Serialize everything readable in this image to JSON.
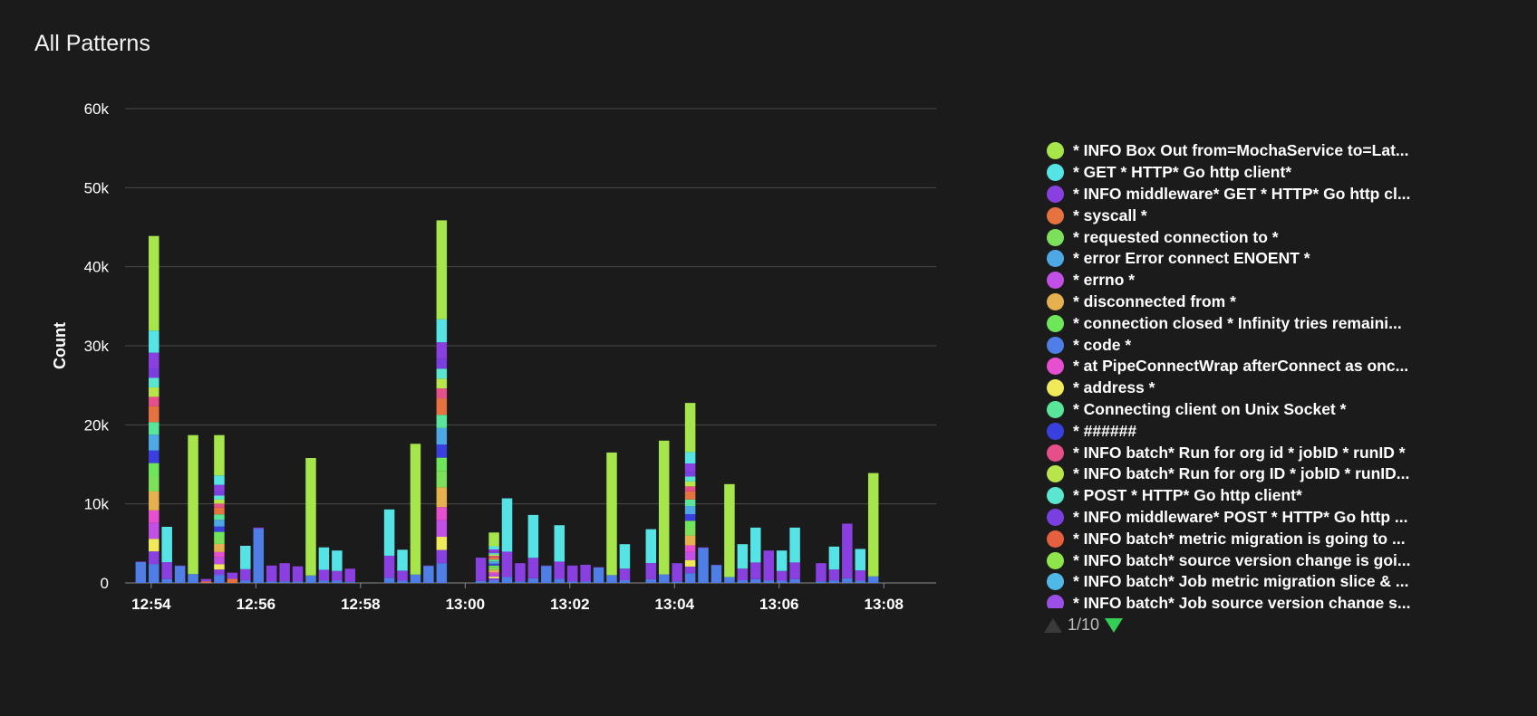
{
  "panel": {
    "title": "All Patterns"
  },
  "pager": {
    "text": "1/10",
    "prev_icon": "triangle-up-icon",
    "next_icon": "triangle-down-icon"
  },
  "chart_data": {
    "type": "bar",
    "stacked": true,
    "ylabel": "Count",
    "ylim": [
      0,
      60000
    ],
    "yticks": [
      {
        "value": 0,
        "label": "0"
      },
      {
        "value": 10000,
        "label": "10k"
      },
      {
        "value": 20000,
        "label": "20k"
      },
      {
        "value": 30000,
        "label": "30k"
      },
      {
        "value": 40000,
        "label": "40k"
      },
      {
        "value": 50000,
        "label": "50k"
      },
      {
        "value": 60000,
        "label": "60k"
      }
    ],
    "xlim": [
      "12:53:30",
      "13:09:00"
    ],
    "xticks": [
      "12:54",
      "12:56",
      "12:58",
      "13:00",
      "13:02",
      "13:04",
      "13:06",
      "13:08"
    ],
    "grid": true,
    "legend_position": "right",
    "bars": [
      {
        "t": "12:53:48",
        "total": 2700,
        "kind": "cyan"
      },
      {
        "t": "12:54:03",
        "total": 39900,
        "kind": "mix"
      },
      {
        "t": "12:54:18",
        "total": 7100,
        "kind": "cyanmix"
      },
      {
        "t": "12:54:33",
        "total": 2200,
        "kind": "cyan"
      },
      {
        "t": "12:54:48",
        "total": 18700,
        "kind": "green"
      },
      {
        "t": "12:55:03",
        "total": 500,
        "kind": "thin"
      },
      {
        "t": "12:55:18",
        "total": 17000,
        "kind": "mix"
      },
      {
        "t": "12:55:33",
        "total": 1300,
        "kind": "thin"
      },
      {
        "t": "12:55:48",
        "total": 4700,
        "kind": "cyanmix"
      },
      {
        "t": "12:56:03",
        "total": 7000,
        "kind": "cyan"
      },
      {
        "t": "12:56:18",
        "total": 2200,
        "kind": "purple"
      },
      {
        "t": "12:56:33",
        "total": 2500,
        "kind": "purple"
      },
      {
        "t": "12:56:48",
        "total": 2100,
        "kind": "purple"
      },
      {
        "t": "12:57:03",
        "total": 15800,
        "kind": "green"
      },
      {
        "t": "12:57:18",
        "total": 4500,
        "kind": "cyanmix"
      },
      {
        "t": "12:57:33",
        "total": 4100,
        "kind": "cyanmix"
      },
      {
        "t": "12:57:48",
        "total": 1800,
        "kind": "purple"
      },
      {
        "t": "12:58:33",
        "total": 9300,
        "kind": "cyanmix"
      },
      {
        "t": "12:58:48",
        "total": 4200,
        "kind": "cyanmix"
      },
      {
        "t": "12:59:03",
        "total": 17600,
        "kind": "green"
      },
      {
        "t": "12:59:18",
        "total": 2200,
        "kind": "cyan"
      },
      {
        "t": "12:59:33",
        "total": 41700,
        "kind": "mix"
      },
      {
        "t": "13:00:18",
        "total": 3200,
        "kind": "purple"
      },
      {
        "t": "13:00:33",
        "total": 5800,
        "kind": "mix"
      },
      {
        "t": "13:00:48",
        "total": 10700,
        "kind": "cyanmix"
      },
      {
        "t": "13:01:03",
        "total": 2500,
        "kind": "purple"
      },
      {
        "t": "13:01:18",
        "total": 8600,
        "kind": "cyanmix"
      },
      {
        "t": "13:01:33",
        "total": 2200,
        "kind": "cyan"
      },
      {
        "t": "13:01:48",
        "total": 7300,
        "kind": "cyanmix"
      },
      {
        "t": "13:02:03",
        "total": 2200,
        "kind": "purple"
      },
      {
        "t": "13:02:18",
        "total": 2300,
        "kind": "purple"
      },
      {
        "t": "13:02:33",
        "total": 2000,
        "kind": "cyan"
      },
      {
        "t": "13:02:48",
        "total": 16500,
        "kind": "green"
      },
      {
        "t": "13:03:03",
        "total": 4900,
        "kind": "cyanmix"
      },
      {
        "t": "13:03:33",
        "total": 6800,
        "kind": "cyanmix"
      },
      {
        "t": "13:03:48",
        "total": 18000,
        "kind": "green"
      },
      {
        "t": "13:04:03",
        "total": 2500,
        "kind": "purple"
      },
      {
        "t": "13:04:18",
        "total": 20700,
        "kind": "mix"
      },
      {
        "t": "13:04:33",
        "total": 4500,
        "kind": "cyan"
      },
      {
        "t": "13:04:48",
        "total": 2300,
        "kind": "cyan"
      },
      {
        "t": "13:05:03",
        "total": 12500,
        "kind": "green"
      },
      {
        "t": "13:05:18",
        "total": 4900,
        "kind": "cyanmix"
      },
      {
        "t": "13:05:33",
        "total": 7000,
        "kind": "cyanmix"
      },
      {
        "t": "13:05:48",
        "total": 4100,
        "kind": "purple"
      },
      {
        "t": "13:06:03",
        "total": 4100,
        "kind": "cyanmix"
      },
      {
        "t": "13:06:18",
        "total": 7000,
        "kind": "cyanmix"
      },
      {
        "t": "13:06:48",
        "total": 2500,
        "kind": "purple"
      },
      {
        "t": "13:07:03",
        "total": 4600,
        "kind": "cyanmix"
      },
      {
        "t": "13:07:18",
        "total": 7500,
        "kind": "purple"
      },
      {
        "t": "13:07:33",
        "total": 4300,
        "kind": "cyanmix"
      },
      {
        "t": "13:07:48",
        "total": 13900,
        "kind": "green"
      }
    ],
    "series": [
      {
        "name": "* INFO Box Out from=MochaService to=Lat...",
        "color": "#a6e64a"
      },
      {
        "name": "* GET * HTTP* Go http client*",
        "color": "#56e3e6"
      },
      {
        "name": "* INFO middleware* GET * HTTP* Go http cl...",
        "color": "#8a3fe0"
      },
      {
        "name": "* syscall *",
        "color": "#e6723f"
      },
      {
        "name": "* requested connection to *",
        "color": "#7de05a"
      },
      {
        "name": "* error Error connect ENOENT *",
        "color": "#4fa8e6"
      },
      {
        "name": "* errno *",
        "color": "#c24fe6"
      },
      {
        "name": "* disconnected from *",
        "color": "#e6b04f"
      },
      {
        "name": "* connection closed * Infinity tries remaini...",
        "color": "#6ee65a"
      },
      {
        "name": "* code *",
        "color": "#4f7ee6"
      },
      {
        "name": "* at PipeConnectWrap afterConnect as onc...",
        "color": "#e64fd0"
      },
      {
        "name": "* address *",
        "color": "#f0ea5a"
      },
      {
        "name": "* Connecting client on Unix Socket *",
        "color": "#5ae69a"
      },
      {
        "name": "* ######",
        "color": "#3a3fe0"
      },
      {
        "name": "* INFO batch* Run for org id * jobID * runID *",
        "color": "#e64f8a"
      },
      {
        "name": "* INFO batch* Run for org ID * jobID * runID...",
        "color": "#b8e64a"
      },
      {
        "name": "* POST * HTTP* Go http client*",
        "color": "#5ae6cf"
      },
      {
        "name": "* INFO middleware* POST * HTTP* Go http ...",
        "color": "#7a3fe0"
      },
      {
        "name": "* INFO batch* metric migration is going to ...",
        "color": "#e6603f"
      },
      {
        "name": "* INFO batch* source version change is goi...",
        "color": "#8ee64a"
      },
      {
        "name": "* INFO batch* Job metric migration slice & ...",
        "color": "#4fb8e6"
      },
      {
        "name": "* INFO batch* Job source version change s...",
        "color": "#9a4fe6"
      }
    ]
  }
}
